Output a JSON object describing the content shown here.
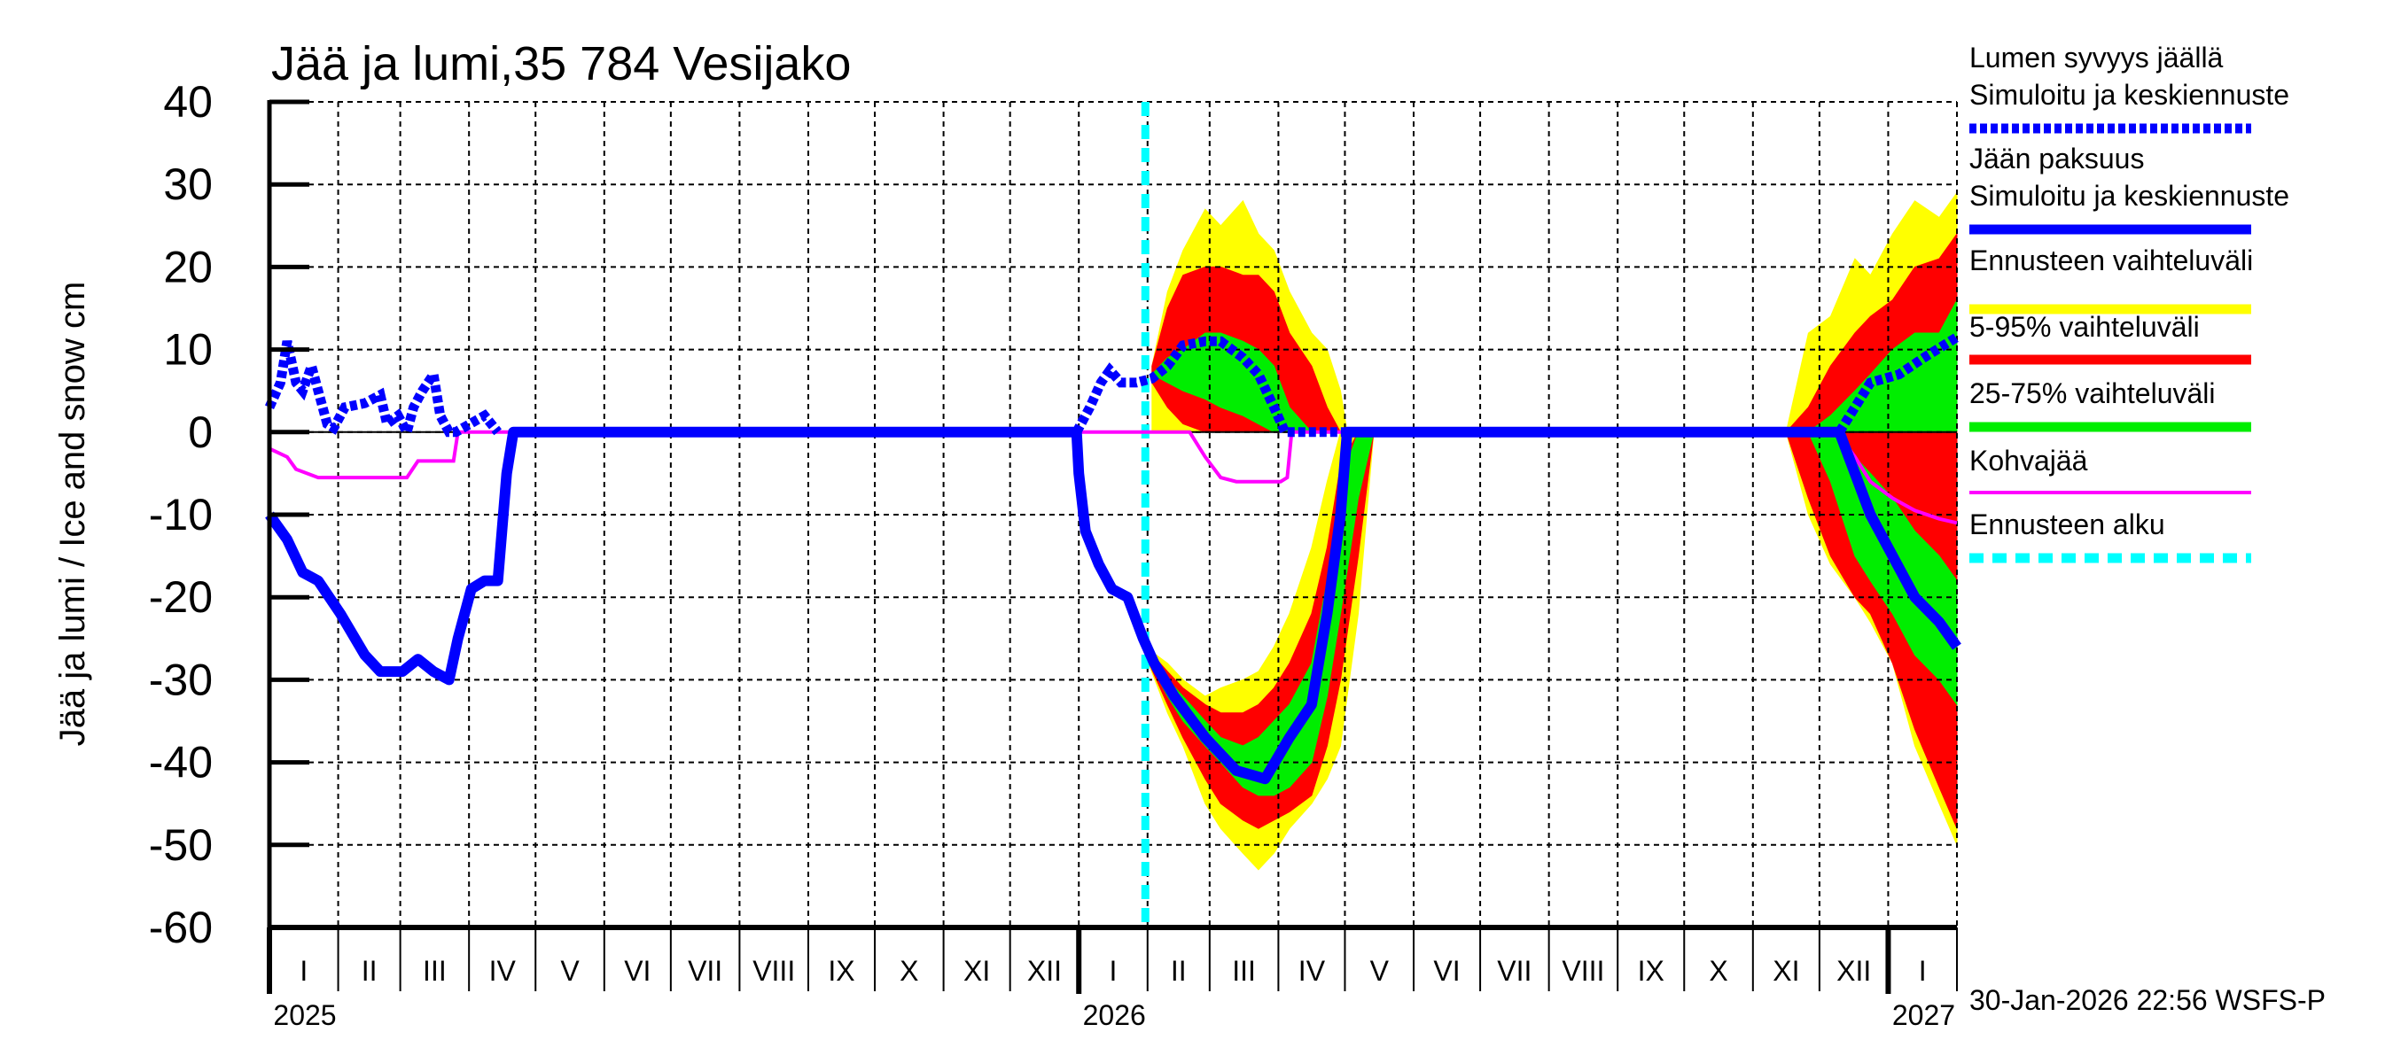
{
  "chart_data": {
    "type": "area",
    "title": "Jää ja lumi,35 784 Vesijako",
    "ylabel": "Jää ja lumi / Ice and snow    cm",
    "xlabel": "",
    "ylim": [
      -60,
      40
    ],
    "yticks": [
      40,
      30,
      20,
      10,
      0,
      -10,
      -20,
      -30,
      -40,
      -50,
      -60
    ],
    "xlim": [
      "2025-01-01",
      "2027-02-01"
    ],
    "grid": true,
    "legend_position": "right",
    "month_labels": [
      "I",
      "II",
      "III",
      "IV",
      "V",
      "VI",
      "VII",
      "VIII",
      "IX",
      "X",
      "XI",
      "XII",
      "I",
      "II",
      "III",
      "IV",
      "V",
      "VI",
      "VII",
      "VIII",
      "IX",
      "X",
      "XI",
      "XII",
      "I"
    ],
    "year_labels": [
      {
        "date": "2025-01-01",
        "label": "2025"
      },
      {
        "date": "2026-01-01",
        "label": "2026"
      },
      {
        "date": "2027-01-01",
        "label": "2027"
      }
    ],
    "timestamp": "30-Jan-2026 22:56 WSFS-P",
    "colors": {
      "snow": "#0000ff",
      "ice": "#0000ff",
      "range": "#ffff00",
      "p5_95": "#ff0000",
      "p25_75": "#00ee00",
      "slush": "#ff00ff",
      "forecast_start": "#00ffff"
    },
    "legend": [
      {
        "line1": "Lumen syvyys jäällä",
        "line2": "Simuloitu ja keskiennuste",
        "color": "#0000ff",
        "style": "dotted"
      },
      {
        "line1": "Jään paksuus",
        "line2": "Simuloitu ja keskiennuste",
        "color": "#0000ff",
        "style": "solid"
      },
      {
        "line1": "Ennusteen vaihteluväli",
        "color": "#ffff00",
        "style": "solid"
      },
      {
        "line1": "5-95% vaihteluväli",
        "color": "#ff0000",
        "style": "solid"
      },
      {
        "line1": "25-75% vaihteluväli",
        "color": "#00ee00",
        "style": "solid"
      },
      {
        "line1": "Kohvajää",
        "color": "#ff00ff",
        "style": "thin"
      },
      {
        "line1": "Ennusteen alku",
        "color": "#00ffff",
        "style": "dashed"
      }
    ],
    "forecast_start": "2026-01-31",
    "snow_depth": [
      [
        [
          "2025-01-01",
          3
        ],
        [
          "2025-01-06",
          6
        ],
        [
          "2025-01-09",
          11
        ],
        [
          "2025-01-13",
          6
        ],
        [
          "2025-01-16",
          5
        ],
        [
          "2025-01-20",
          8
        ],
        [
          "2025-01-23",
          5
        ],
        [
          "2025-01-27",
          1
        ],
        [
          "2025-01-30",
          0.5
        ],
        [
          "2025-02-04",
          3
        ],
        [
          "2025-02-13",
          3.5
        ],
        [
          "2025-02-20",
          4.5
        ],
        [
          "2025-02-23",
          1
        ],
        [
          "2025-02-28",
          2
        ],
        [
          "2025-03-04",
          0
        ],
        [
          "2025-03-07",
          3
        ],
        [
          "2025-03-11",
          5
        ],
        [
          "2025-03-16",
          7
        ],
        [
          "2025-03-19",
          2
        ],
        [
          "2025-03-23",
          0
        ],
        [
          "2025-03-26",
          0
        ],
        [
          "2025-04-08",
          2
        ],
        [
          "2025-04-14",
          0
        ]
      ],
      [
        [
          "2025-12-31",
          0
        ],
        [
          "2026-01-06",
          3
        ],
        [
          "2026-01-11",
          6
        ],
        [
          "2026-01-15",
          7.5
        ],
        [
          "2026-01-20",
          6
        ],
        [
          "2026-01-27",
          6
        ],
        [
          "2026-02-03",
          6.5
        ],
        [
          "2026-02-10",
          8
        ],
        [
          "2026-02-17",
          10.5
        ],
        [
          "2026-02-27",
          11
        ],
        [
          "2026-03-06",
          11
        ],
        [
          "2026-03-16",
          9
        ],
        [
          "2026-03-23",
          7
        ],
        [
          "2026-03-30",
          3
        ],
        [
          "2026-04-04",
          0
        ],
        [
          "2026-05-02",
          0
        ]
      ],
      [
        [
          "2026-12-10",
          0
        ],
        [
          "2026-12-17",
          3
        ],
        [
          "2026-12-24",
          6
        ],
        [
          "2027-01-06",
          7
        ],
        [
          "2027-01-17",
          9
        ],
        [
          "2027-02-01",
          11.5
        ]
      ]
    ],
    "ice_thickness": [
      [
        [
          "2025-01-01",
          -10
        ],
        [
          "2025-01-09",
          -13
        ],
        [
          "2025-01-16",
          -17
        ],
        [
          "2025-01-23",
          -18
        ],
        [
          "2025-02-02",
          -22
        ],
        [
          "2025-02-13",
          -27
        ],
        [
          "2025-02-20",
          -29
        ],
        [
          "2025-03-02",
          -29
        ],
        [
          "2025-03-09",
          -27.5
        ],
        [
          "2025-03-16",
          -29
        ],
        [
          "2025-03-23",
          -30
        ],
        [
          "2025-03-27",
          -25
        ],
        [
          "2025-04-02",
          -19
        ],
        [
          "2025-04-08",
          -18
        ],
        [
          "2025-04-14",
          -18
        ],
        [
          "2025-04-18",
          -5
        ],
        [
          "2025-04-21",
          0
        ],
        [
          "2025-12-31",
          0
        ],
        [
          "2026-01-01",
          -5
        ],
        [
          "2026-01-04",
          -12
        ],
        [
          "2026-01-10",
          -16
        ],
        [
          "2026-01-16",
          -19
        ],
        [
          "2026-01-23",
          -20
        ],
        [
          "2026-01-30",
          -25
        ],
        [
          "2026-02-04",
          -28
        ],
        [
          "2026-02-13",
          -32
        ],
        [
          "2026-02-27",
          -37
        ],
        [
          "2026-03-13",
          -41
        ],
        [
          "2026-03-26",
          -42
        ],
        [
          "2026-04-06",
          -37
        ],
        [
          "2026-04-16",
          -33
        ],
        [
          "2026-04-23",
          -22
        ],
        [
          "2026-04-29",
          -10
        ],
        [
          "2026-05-02",
          0
        ],
        [
          "2026-12-10",
          0
        ],
        [
          "2026-12-17",
          -5
        ],
        [
          "2026-12-24",
          -10
        ],
        [
          "2027-01-03",
          -15
        ],
        [
          "2027-01-13",
          -20
        ],
        [
          "2027-01-24",
          -23
        ],
        [
          "2027-02-01",
          -26
        ]
      ]
    ],
    "slush_ice": [
      [
        [
          "2025-01-01",
          -2
        ],
        [
          "2025-01-09",
          -3
        ],
        [
          "2025-01-13",
          -4.5
        ],
        [
          "2025-01-23",
          -5.5
        ],
        [
          "2025-03-04",
          -5.5
        ],
        [
          "2025-03-09",
          -3.5
        ],
        [
          "2025-03-25",
          -3.5
        ],
        [
          "2025-03-27",
          0
        ],
        [
          "2026-02-20",
          0
        ],
        [
          "2026-02-27",
          -3
        ],
        [
          "2026-03-06",
          -5.5
        ],
        [
          "2026-03-13",
          -6
        ],
        [
          "2026-04-02",
          -6
        ],
        [
          "2026-04-05",
          -5.5
        ],
        [
          "2026-04-07",
          0
        ],
        [
          "2026-12-09",
          0
        ],
        [
          "2026-12-17",
          -3
        ],
        [
          "2026-12-24",
          -6
        ],
        [
          "2027-01-03",
          -8
        ],
        [
          "2027-01-13",
          -9.5
        ],
        [
          "2027-01-24",
          -10.5
        ],
        [
          "2027-02-01",
          -11
        ]
      ]
    ],
    "bands_columns": [
      "date",
      "range_low",
      "range_high",
      "p5_low",
      "p95_high",
      "p25_low",
      "p75_high"
    ],
    "bands": [
      [
        [
          "2026-02-03",
          0,
          8,
          6,
          8,
          7,
          7
        ],
        [
          "2026-02-10",
          0,
          17,
          3,
          15,
          6,
          9
        ],
        [
          "2026-02-17",
          0,
          22,
          1,
          19,
          5,
          10
        ],
        [
          "2026-02-27",
          0,
          27,
          0,
          20,
          4,
          12
        ],
        [
          "2026-03-06",
          0,
          25,
          0,
          20,
          3,
          12
        ],
        [
          "2026-03-16",
          0,
          28,
          0,
          19,
          2,
          11
        ],
        [
          "2026-03-23",
          0,
          24,
          0,
          19,
          1,
          10
        ],
        [
          "2026-03-30",
          0,
          22,
          0,
          17,
          0,
          8
        ],
        [
          "2026-04-06",
          0,
          17,
          0,
          12,
          0,
          3
        ],
        [
          "2026-04-16",
          0,
          12,
          0,
          8,
          0,
          0
        ],
        [
          "2026-04-23",
          0,
          10,
          0,
          3,
          0,
          0
        ],
        [
          "2026-04-29",
          0,
          5,
          0,
          0,
          0,
          0
        ],
        [
          "2026-05-02",
          0,
          0,
          0,
          0,
          0,
          0
        ]
      ],
      [
        [
          "2026-01-31",
          -27,
          -26,
          -27,
          -26,
          -27,
          -26
        ],
        [
          "2026-02-10",
          -34,
          -28,
          -33,
          -29,
          -32,
          -30
        ],
        [
          "2026-02-17",
          -38,
          -30,
          -37,
          -31,
          -35,
          -32
        ],
        [
          "2026-02-27",
          -45,
          -32,
          -42,
          -33,
          -38,
          -35
        ],
        [
          "2026-03-06",
          -48,
          -31,
          -45,
          -34,
          -40,
          -37
        ],
        [
          "2026-03-16",
          -51,
          -30,
          -47,
          -34,
          -43,
          -38
        ],
        [
          "2026-03-23",
          -53,
          -29,
          -48,
          -33,
          -44,
          -37
        ],
        [
          "2026-03-30",
          -51,
          -26,
          -47,
          -31,
          -44,
          -35
        ],
        [
          "2026-04-06",
          -48,
          -22,
          -46,
          -28,
          -43,
          -33
        ],
        [
          "2026-04-16",
          -45,
          -14,
          -44,
          -22,
          -40,
          -28
        ],
        [
          "2026-04-23",
          -42,
          -6,
          -38,
          -14,
          -32,
          -18
        ],
        [
          "2026-04-29",
          -38,
          0,
          -30,
          -4,
          -22,
          -6
        ],
        [
          "2026-05-07",
          -22,
          0,
          -15,
          0,
          -8,
          0
        ],
        [
          "2026-05-14",
          0,
          0,
          0,
          0,
          0,
          0
        ]
      ],
      [
        [
          "2026-11-16",
          0,
          0,
          0,
          0,
          0,
          0
        ],
        [
          "2026-11-26",
          0,
          12,
          0,
          3,
          0,
          0
        ],
        [
          "2026-12-06",
          0,
          14,
          0,
          8,
          0,
          2
        ],
        [
          "2026-12-17",
          0,
          21,
          0,
          12,
          0,
          5
        ],
        [
          "2026-12-24",
          0,
          19,
          0,
          14,
          0,
          7
        ],
        [
          "2027-01-03",
          0,
          24,
          0,
          16,
          0,
          10
        ],
        [
          "2027-01-13",
          0,
          28,
          0,
          20,
          0,
          12
        ],
        [
          "2027-01-24",
          0,
          26,
          0,
          21,
          0,
          12
        ],
        [
          "2027-02-01",
          0,
          29,
          0,
          24,
          0,
          16
        ]
      ],
      [
        [
          "2026-11-16",
          0,
          0,
          0,
          0,
          0,
          0
        ],
        [
          "2026-11-26",
          -10,
          0,
          -8,
          0,
          0,
          0
        ],
        [
          "2026-12-06",
          -16,
          0,
          -15,
          0,
          -6,
          0
        ],
        [
          "2026-12-17",
          -20,
          0,
          -20,
          0,
          -15,
          -3
        ],
        [
          "2026-12-24",
          -23,
          0,
          -22,
          0,
          -18,
          -5
        ],
        [
          "2027-01-03",
          -28,
          0,
          -28,
          0,
          -22,
          -8
        ],
        [
          "2027-01-13",
          -38,
          0,
          -36,
          0,
          -27,
          -12
        ],
        [
          "2027-01-24",
          -45,
          0,
          -43,
          0,
          -30,
          -15
        ],
        [
          "2027-02-01",
          -50,
          0,
          -48,
          0,
          -33,
          -18
        ]
      ]
    ]
  }
}
